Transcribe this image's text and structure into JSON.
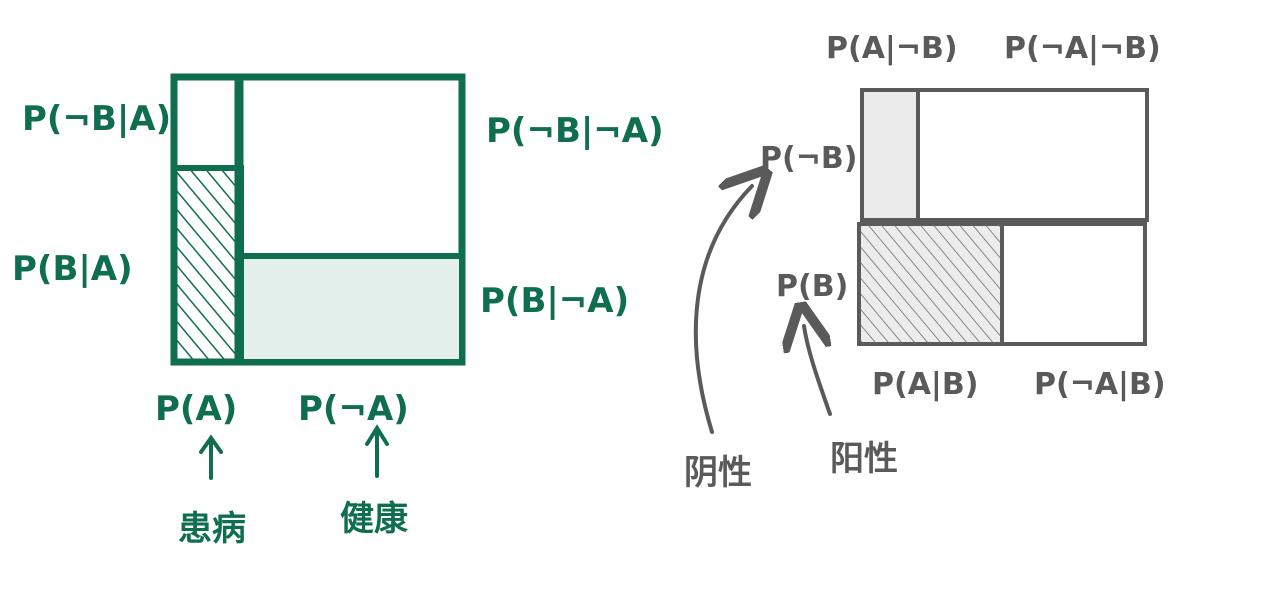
{
  "colors": {
    "green": "#0f6e4f",
    "green_fill": "#e3f0ec",
    "gray": "#5a5a5a",
    "gray_fill": "#ececec"
  },
  "left": {
    "labels": {
      "p_notb_given_a": "P(¬B|A)",
      "p_b_given_a": "P(B|A)",
      "p_notb_given_nota": "P(¬B|¬A)",
      "p_b_given_nota": "P(B|¬A)",
      "p_a": "P(A)",
      "p_nota": "P(¬A)",
      "sick": "患病",
      "healthy": "健康"
    }
  },
  "right": {
    "labels": {
      "p_a_given_notb": "P(A|¬B)",
      "p_nota_given_notb": "P(¬A|¬B)",
      "p_notb": "P(¬B)",
      "p_b": "P(B)",
      "p_a_given_b": "P(A|B)",
      "p_nota_given_b": "P(¬A|B)",
      "negative": "阴性",
      "positive": "阳性"
    }
  }
}
